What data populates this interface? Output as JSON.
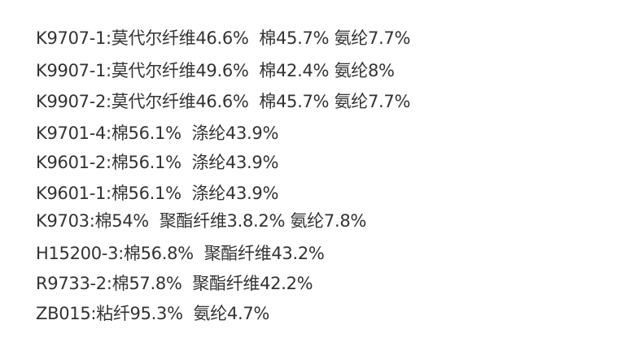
{
  "lines": [
    "K9707-1:莫代尔纤维46.6%  棉45.7% 氨纶7.7%",
    "K9907-1:莫代尔纤维49.6%  棉42.4% 氨纶8%",
    "K9907-2:莫代尔纤维46.6%  棉45.7% 氨纶7.7%",
    "K9701-4:棉56.1%  涤纶43.9%",
    "K9601-2:棉56.1%  涤纶43.9%",
    "K9601-1:棉56.1%  涤纶43.9%",
    "K9703:棉54%  聚酯纤维3.8.2% 氨纶7.8%",
    "H15200-3:棉56.8%  聚酯纤维43.2%",
    "R9733-2:棉57.8%  聚酯纤维42.2%",
    "ZB015:粘纤95.3%  氨纶4.7%"
  ]
}
